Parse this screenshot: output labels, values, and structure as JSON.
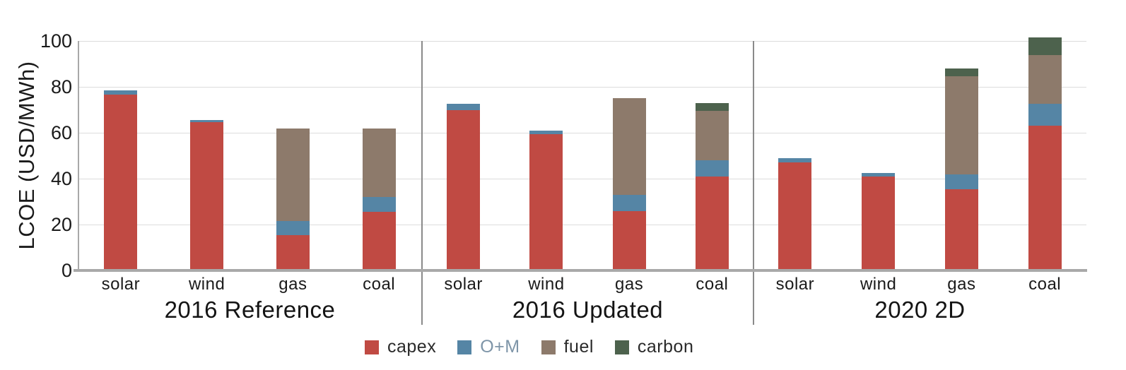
{
  "chart_data": {
    "type": "bar",
    "stacked": true,
    "title": "",
    "xlabel": "",
    "ylabel": "LCOE (USD/MWh)",
    "ylim": [
      0,
      100
    ],
    "yticks": [
      0,
      20,
      40,
      60,
      80,
      100
    ],
    "grid": true,
    "legend_position": "bottom",
    "categories": [
      "solar",
      "wind",
      "gas",
      "coal"
    ],
    "series_keys": [
      "capex",
      "o_m",
      "fuel",
      "carbon"
    ],
    "colors": {
      "capex": "#c04a43",
      "o_m": "#5585a5",
      "fuel": "#8d7a6b",
      "carbon": "#4d624d"
    },
    "groups": [
      {
        "label": "2016 Reference",
        "bars": [
          {
            "category": "solar",
            "capex": 76.5,
            "o_m": 2,
            "fuel": 0,
            "carbon": 0
          },
          {
            "category": "wind",
            "capex": 64.5,
            "o_m": 1,
            "fuel": 0,
            "carbon": 0
          },
          {
            "category": "gas",
            "capex": 15.5,
            "o_m": 6,
            "fuel": 40.5,
            "carbon": 0
          },
          {
            "category": "coal",
            "capex": 25.5,
            "o_m": 6.5,
            "fuel": 30,
            "carbon": 0
          }
        ]
      },
      {
        "label": "2016 Updated",
        "bars": [
          {
            "category": "solar",
            "capex": 70,
            "o_m": 2.5,
            "fuel": 0,
            "carbon": 0
          },
          {
            "category": "wind",
            "capex": 59.5,
            "o_m": 1.5,
            "fuel": 0,
            "carbon": 0
          },
          {
            "category": "gas",
            "capex": 26,
            "o_m": 7,
            "fuel": 42,
            "carbon": 0
          },
          {
            "category": "coal",
            "capex": 41,
            "o_m": 7,
            "fuel": 21.5,
            "carbon": 3.5
          }
        ]
      },
      {
        "label": "2020 2D",
        "bars": [
          {
            "category": "solar",
            "capex": 47,
            "o_m": 2,
            "fuel": 0,
            "carbon": 0
          },
          {
            "category": "wind",
            "capex": 41,
            "o_m": 1.5,
            "fuel": 0,
            "carbon": 0
          },
          {
            "category": "gas",
            "capex": 35.5,
            "o_m": 6.5,
            "fuel": 42.5,
            "carbon": 3.5
          },
          {
            "category": "coal",
            "capex": 63,
            "o_m": 9.5,
            "fuel": 21.5,
            "carbon": 7.5
          }
        ]
      }
    ],
    "legend": [
      {
        "key": "capex",
        "label": "capex",
        "swatch": "#c04a43",
        "label_color": "#2a2a2a"
      },
      {
        "key": "o_m",
        "label": "O+M",
        "swatch": "#5585a5",
        "label_color": "#7e95a8"
      },
      {
        "key": "fuel",
        "label": "fuel",
        "swatch": "#8d7a6b",
        "label_color": "#2a2a2a"
      },
      {
        "key": "carbon",
        "label": "carbon",
        "swatch": "#4d624d",
        "label_color": "#2a2a2a"
      }
    ]
  },
  "styles": {
    "background": "#ffffff",
    "grid_color": "#dcdcdc",
    "axis_color": "#a9a9a9",
    "divider_color": "#8a8a8a",
    "text_color": "#1a1a1a"
  }
}
